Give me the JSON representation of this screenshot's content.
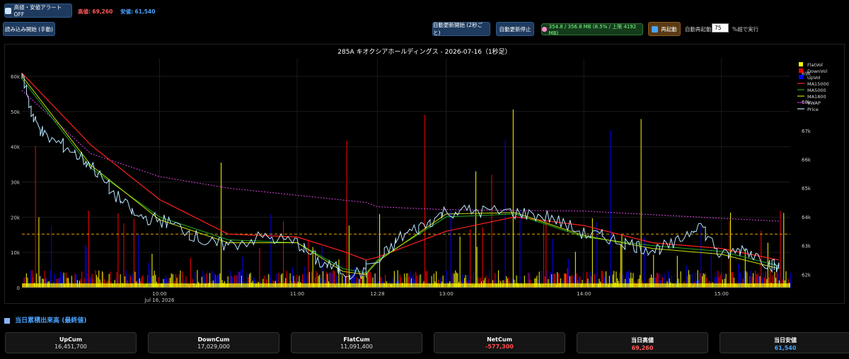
{
  "toolbar": {
    "alert_toggle_label": "高値・安値アラート OFF",
    "high_label": "高値:",
    "high_value": "69,260",
    "low_label": "安値:",
    "low_value": "61,540",
    "manual_load_label": "読み込み開始 (手動)",
    "auto_start_label": "自動更新開始 (2秒ごと)",
    "auto_stop_label": "自動更新停止",
    "memory_status": "354.8 / 356.8 MB (8.5% / 上限 4192 MB)",
    "restart_label": "再起動",
    "auto_restart_label": "自動再起動:",
    "auto_restart_value": "75",
    "auto_restart_suffix": "%超で実行"
  },
  "colors": {
    "flat": "#ffff00",
    "down": "#ff0000",
    "up": "#0000ff",
    "ma15000": "#ff2020",
    "ma5000": "#22aa22",
    "ma1800": "#c8e000",
    "vwap": "#dd44dd",
    "price": "#b8e6ff",
    "ref_line": "#e8a000"
  },
  "chart_data": {
    "type": "line",
    "title": "285A キオクシアホールディングス - 2026-07-16（1秒足）",
    "x_ticks": [
      "10:00",
      "11:00",
      "12:28",
      "13:00",
      "14:00",
      "15:00"
    ],
    "x_sub_label": "Jul 16, 2026",
    "y_left_ticks": [
      "0",
      "10k",
      "20k",
      "30k",
      "40k",
      "50k",
      "60k"
    ],
    "y_right_ticks": [
      "62k",
      "63k",
      "64k",
      "65k",
      "66k",
      "67k",
      "68k",
      "69k"
    ],
    "ylim_left": [
      0,
      65000
    ],
    "ylim_right": [
      61540,
      69500
    ],
    "legend_position": "top-right",
    "legend": [
      "FlatVol",
      "DownVol",
      "UpVol",
      "MA15000",
      "MA5000",
      "MA1800",
      "VWAP",
      "Price"
    ],
    "price_points": [
      [
        "09:00",
        69000
      ],
      [
        "09:05",
        67400
      ],
      [
        "09:10",
        66800
      ],
      [
        "09:20",
        66400
      ],
      [
        "09:30",
        65800
      ],
      [
        "09:40",
        64800
      ],
      [
        "09:50",
        64000
      ],
      [
        "10:00",
        63900
      ],
      [
        "10:10",
        63600
      ],
      [
        "10:20",
        63100
      ],
      [
        "10:30",
        63000
      ],
      [
        "10:45",
        63300
      ],
      [
        "11:00",
        63100
      ],
      [
        "11:10",
        62400
      ],
      [
        "11:20",
        62100
      ],
      [
        "11:30",
        62000
      ],
      [
        "12:30",
        62400
      ],
      [
        "12:40",
        63300
      ],
      [
        "12:50",
        63700
      ],
      [
        "13:00",
        64200
      ],
      [
        "13:15",
        64200
      ],
      [
        "13:30",
        64150
      ],
      [
        "13:45",
        64000
      ],
      [
        "14:00",
        63400
      ],
      [
        "14:10",
        63300
      ],
      [
        "14:20",
        63050
      ],
      [
        "14:30",
        62850
      ],
      [
        "14:40",
        63050
      ],
      [
        "14:50",
        63800
      ],
      [
        "15:00",
        62600
      ],
      [
        "15:10",
        62900
      ],
      [
        "15:20",
        62400
      ],
      [
        "15:25",
        62200
      ]
    ],
    "ma15000_points": [
      [
        "09:00",
        69000
      ],
      [
        "09:30",
        66500
      ],
      [
        "10:00",
        64600
      ],
      [
        "10:30",
        63400
      ],
      [
        "11:00",
        63300
      ],
      [
        "11:20",
        62800
      ],
      [
        "11:30",
        62500
      ],
      [
        "12:30",
        62600
      ],
      [
        "13:00",
        63500
      ],
      [
        "13:30",
        64000
      ],
      [
        "14:00",
        63700
      ],
      [
        "14:30",
        63100
      ],
      [
        "15:00",
        62900
      ],
      [
        "15:25",
        62500
      ]
    ],
    "ma5000_points": [
      [
        "09:00",
        68800
      ],
      [
        "09:30",
        65700
      ],
      [
        "10:00",
        64000
      ],
      [
        "10:30",
        63200
      ],
      [
        "11:00",
        63100
      ],
      [
        "11:20",
        62200
      ],
      [
        "11:30",
        62050
      ],
      [
        "12:30",
        62500
      ],
      [
        "13:00",
        64000
      ],
      [
        "13:30",
        64100
      ],
      [
        "14:00",
        63300
      ],
      [
        "14:30",
        63000
      ],
      [
        "15:00",
        62800
      ],
      [
        "15:25",
        62300
      ]
    ],
    "ma1800_points": [
      [
        "09:00",
        68900
      ],
      [
        "09:30",
        65800
      ],
      [
        "10:00",
        63900
      ],
      [
        "10:30",
        63100
      ],
      [
        "11:00",
        63100
      ],
      [
        "11:20",
        62100
      ],
      [
        "11:30",
        62000
      ],
      [
        "12:30",
        62450
      ],
      [
        "13:00",
        64100
      ],
      [
        "13:30",
        64150
      ],
      [
        "14:00",
        63350
      ],
      [
        "14:30",
        62900
      ],
      [
        "15:00",
        62700
      ],
      [
        "15:25",
        62200
      ]
    ],
    "vwap_points": [
      [
        "09:00",
        68400
      ],
      [
        "09:30",
        66200
      ],
      [
        "10:00",
        65400
      ],
      [
        "10:30",
        65000
      ],
      [
        "11:00",
        64750
      ],
      [
        "11:30",
        64500
      ],
      [
        "12:30",
        64350
      ],
      [
        "13:00",
        64250
      ],
      [
        "14:00",
        64200
      ],
      [
        "15:00",
        63950
      ],
      [
        "15:25",
        63850
      ]
    ],
    "ref_line_value": 63400
  },
  "summary": {
    "title": "当日累積出来高 (最終値)",
    "cards": [
      {
        "label": "UpCum",
        "value": "16,451,700",
        "color": "#dddddd"
      },
      {
        "label": "DownCum",
        "value": "17,029,000",
        "color": "#dddddd"
      },
      {
        "label": "FlatCum",
        "value": "11,091,400",
        "color": "#dddddd"
      },
      {
        "label": "NetCum",
        "value": "-577,300",
        "color": "#ff4d4d"
      },
      {
        "label": "当日高値",
        "value": "69,260",
        "color": "#ff5a5a"
      },
      {
        "label": "当日安値",
        "value": "61,540",
        "color": "#4aa3ff"
      }
    ]
  }
}
